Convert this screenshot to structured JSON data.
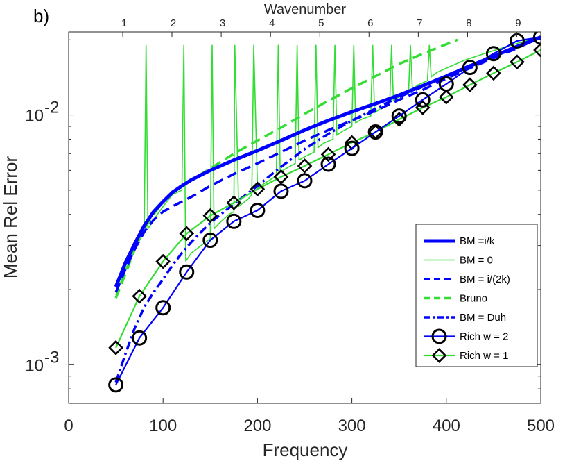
{
  "chart_data": {
    "type": "line",
    "panel_label": "b)",
    "xlabel": "Frequency",
    "ylabel": "Mean Rel Error",
    "top_xlabel": "Wavenumber",
    "xlim": [
      0,
      500
    ],
    "ylim": [
      0.0007,
      0.0215
    ],
    "yscale": "log",
    "x_ticks": [
      "0",
      "100",
      "200",
      "300",
      "400",
      "500"
    ],
    "x_tick_values": [
      0,
      100,
      200,
      300,
      400,
      500
    ],
    "y_ticks": [
      {
        "value": 0.01,
        "base": "10",
        "exp": "-2"
      },
      {
        "value": 0.001,
        "base": "10",
        "exp": "-3"
      }
    ],
    "top_ticks": [
      "1",
      "2",
      "3",
      "4",
      "5",
      "6",
      "7",
      "8",
      "9"
    ],
    "top_tick_frequencies": [
      57.3,
      109.4,
      161.6,
      213.8,
      266.0,
      318.1,
      370.3,
      422.5,
      474.6
    ],
    "legend_position": "bottom-right",
    "series": [
      {
        "name": "BM =i/k",
        "color": "#0000ff",
        "style": "solid-thick",
        "x": [
          50,
          60,
          70,
          80,
          90,
          100,
          110,
          120,
          130,
          150,
          175,
          200,
          225,
          250,
          275,
          300,
          325,
          350,
          375,
          400,
          425,
          450,
          475,
          500
        ],
        "y": [
          0.00205,
          0.00255,
          0.00305,
          0.0036,
          0.0041,
          0.0045,
          0.0049,
          0.0052,
          0.0055,
          0.006,
          0.0066,
          0.0072,
          0.0079,
          0.0087,
          0.0095,
          0.0103,
          0.0111,
          0.012,
          0.0131,
          0.0143,
          0.0157,
          0.0172,
          0.0188,
          0.0205
        ]
      },
      {
        "name": "BM = 0",
        "color": "#33dd33",
        "style": "solid-thin",
        "x": [
          50,
          60,
          70,
          80,
          82,
          84,
          90,
          100,
          110,
          120,
          122,
          124,
          130,
          150,
          152,
          154,
          160,
          170,
          175,
          176,
          180,
          190,
          194,
          196,
          200,
          210,
          220,
          222,
          224,
          230,
          240,
          242,
          244,
          250,
          260,
          262,
          264,
          270,
          280,
          282,
          284,
          290,
          300,
          302,
          304,
          310,
          320,
          322,
          324,
          330,
          340,
          342,
          344,
          350,
          360,
          362,
          364,
          370,
          380,
          382,
          384,
          390,
          400,
          420,
          440,
          460,
          480,
          500
        ],
        "y": [
          0.0019,
          0.0024,
          0.0029,
          0.0034,
          0.019,
          0.0035,
          0.0038,
          0.0043,
          0.0048,
          0.005,
          0.019,
          0.0026,
          0.0028,
          0.0032,
          0.019,
          0.0035,
          0.0037,
          0.004,
          0.0041,
          0.019,
          0.0043,
          0.0046,
          0.0048,
          0.019,
          0.0051,
          0.0054,
          0.0057,
          0.019,
          0.0059,
          0.0061,
          0.0064,
          0.019,
          0.0066,
          0.0068,
          0.0071,
          0.019,
          0.0074,
          0.0077,
          0.008,
          0.019,
          0.0083,
          0.0086,
          0.009,
          0.019,
          0.0093,
          0.0096,
          0.0099,
          0.019,
          0.0102,
          0.0106,
          0.011,
          0.019,
          0.0114,
          0.0118,
          0.0122,
          0.019,
          0.0127,
          0.0132,
          0.0137,
          0.019,
          0.0142,
          0.0148,
          0.0154,
          0.0166,
          0.0176,
          0.0186,
          0.0196,
          0.0205
        ]
      },
      {
        "name": "BM = i/(2k)",
        "color": "#0000ff",
        "style": "dashed",
        "x": [
          50,
          60,
          70,
          80,
          90,
          100,
          110,
          120,
          130,
          150,
          175,
          200,
          225,
          250,
          275,
          300,
          325,
          350,
          375,
          400,
          425,
          450,
          475,
          500
        ],
        "y": [
          0.00195,
          0.0024,
          0.0029,
          0.0034,
          0.0038,
          0.0041,
          0.0043,
          0.0045,
          0.0047,
          0.0052,
          0.0058,
          0.0064,
          0.0071,
          0.0079,
          0.0087,
          0.0095,
          0.0104,
          0.0115,
          0.0126,
          0.014,
          0.0154,
          0.0169,
          0.0185,
          0.0205
        ]
      },
      {
        "name": "Bruno",
        "color": "#33dd33",
        "style": "dashed",
        "x": [
          50,
          60,
          70,
          80,
          90,
          100,
          110,
          120,
          130,
          150,
          175,
          200,
          225,
          250,
          275,
          300,
          325,
          350,
          375,
          400,
          412
        ],
        "y": [
          0.00185,
          0.0023,
          0.0029,
          0.0035,
          0.004,
          0.0045,
          0.0049,
          0.0052,
          0.0055,
          0.0061,
          0.007,
          0.0079,
          0.0089,
          0.0101,
          0.0114,
          0.0128,
          0.0143,
          0.016,
          0.0176,
          0.0192,
          0.02
        ]
      },
      {
        "name": "BM = Duh",
        "color": "#0000ff",
        "style": "dashdot",
        "x": [
          50,
          60,
          70,
          80,
          90,
          100,
          110,
          120,
          130,
          150,
          175,
          200,
          225,
          250,
          275,
          300,
          325,
          350,
          375,
          400,
          425,
          450,
          475,
          500
        ],
        "y": [
          0.00085,
          0.0011,
          0.0014,
          0.0017,
          0.00195,
          0.0022,
          0.0025,
          0.0028,
          0.0031,
          0.0037,
          0.0044,
          0.0052,
          0.0062,
          0.0073,
          0.0084,
          0.0095,
          0.0106,
          0.0118,
          0.013,
          0.0144,
          0.0158,
          0.0172,
          0.0187,
          0.0203
        ]
      },
      {
        "name": "Rich   w = 2",
        "color": "#0000ff",
        "style": "solid-circle",
        "x": [
          50,
          75,
          100,
          125,
          150,
          175,
          200,
          225,
          250,
          275,
          300,
          325,
          350,
          375,
          400,
          425,
          450,
          475,
          500
        ],
        "y": [
          0.00083,
          0.00128,
          0.00169,
          0.00235,
          0.00315,
          0.00375,
          0.00415,
          0.00495,
          0.00545,
          0.00635,
          0.00735,
          0.00855,
          0.0099,
          0.0115,
          0.0133,
          0.0155,
          0.0176,
          0.0198,
          0.0205
        ]
      },
      {
        "name": "Rich   w = 1",
        "color": "#33dd33",
        "style": "solid-diamond",
        "x": [
          50,
          75,
          100,
          125,
          150,
          175,
          200,
          225,
          250,
          275,
          300,
          325,
          350,
          375,
          400,
          425,
          450,
          475,
          500
        ],
        "y": [
          0.00117,
          0.00188,
          0.00259,
          0.00335,
          0.00395,
          0.00445,
          0.00505,
          0.00565,
          0.00625,
          0.00695,
          0.00775,
          0.00855,
          0.0096,
          0.0107,
          0.0118,
          0.0132,
          0.0147,
          0.0163,
          0.0182
        ]
      }
    ]
  }
}
